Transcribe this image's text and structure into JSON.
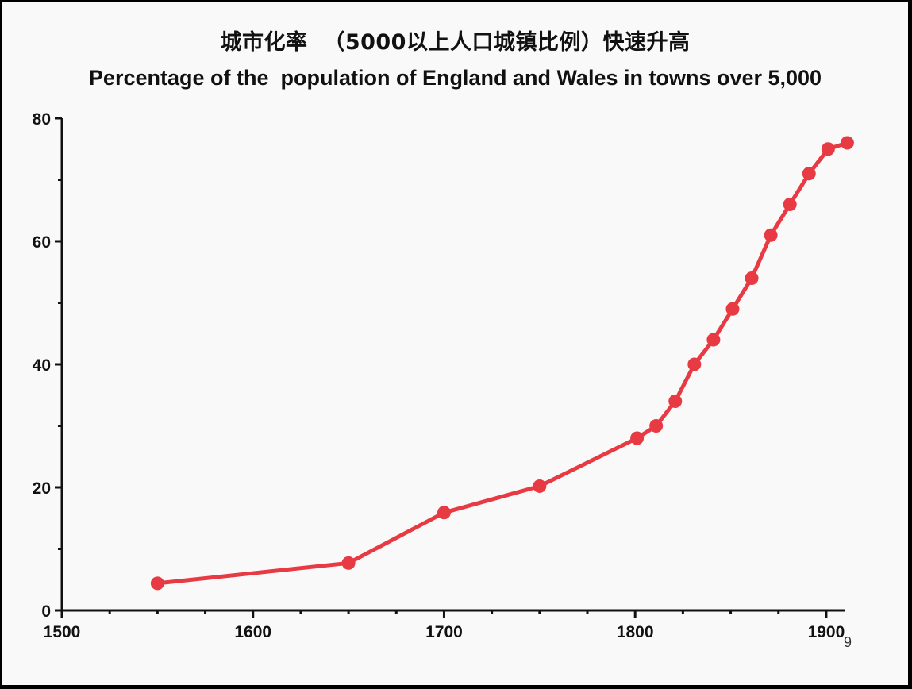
{
  "slide": {
    "title_cn": "城市化率  （5000以上人口城镇比例）快速升高",
    "title_en": "Percentage of the  population of England and Wales in towns over 5,000",
    "page_number": "9"
  },
  "colors": {
    "series": "#e83a43",
    "axis": "#111111",
    "background": "#f9f9f9"
  },
  "chart_data": {
    "type": "line",
    "title": "Percentage of the  population of England and Wales in towns over 5,000",
    "xlabel": "",
    "ylabel": "",
    "xlim": [
      1500,
      1910
    ],
    "ylim": [
      0,
      80
    ],
    "xticks": [
      1500,
      1600,
      1700,
      1800,
      1900
    ],
    "yticks": [
      0,
      20,
      40,
      60,
      80
    ],
    "grid": false,
    "legend": "none",
    "series": [
      {
        "x": [
          1550,
          1650,
          1700,
          1750,
          1801,
          1811,
          1821,
          1831,
          1841,
          1851,
          1861,
          1871,
          1881,
          1891,
          1901,
          1911
        ],
        "y": [
          4.4,
          7.7,
          15.9,
          20.2,
          28,
          30,
          34,
          40,
          44,
          49,
          54,
          61,
          66,
          71,
          75,
          76
        ]
      }
    ]
  }
}
